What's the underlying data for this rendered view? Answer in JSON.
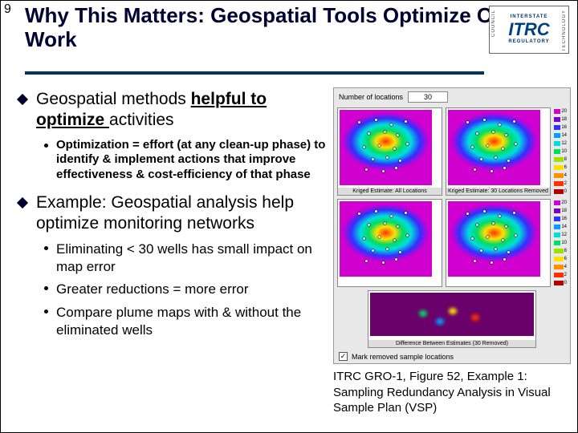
{
  "page_number": "9",
  "title": "Why This Matters: Geospatial Tools Optimize Our Work",
  "logo": {
    "main": "ITRC",
    "top": "INTERSTATE",
    "left": "COUNCIL",
    "right": "TECHNOLOGY",
    "bottom": "REGULATORY"
  },
  "bullets": {
    "b1_pre": "Geospatial methods ",
    "b1_ul": "helpful to optimize ",
    "b1_post": "activities",
    "b1_sub1": "Optimization = effort (at any clean-up phase) to identify & implement actions that improve effectiveness & cost-efficiency of that phase",
    "b2": "Example: Geospatial analysis help optimize monitoring networks",
    "b2_sub1": "Eliminating < 30 wells has small impact on map error",
    "b2_sub2": "Greater reductions = more error",
    "b2_sub3": "Compare plume maps with & without the eliminated wells"
  },
  "figure": {
    "num_label": "Number of locations",
    "num_value": "30",
    "map1_caption": "Kriged Estimate: All Locations",
    "map2_caption": "Kriged Estimate: 30 Locations Removed",
    "diff_caption": "Difference Between Estimates (30 Removed)",
    "checkbox_label": "Mark removed sample locations",
    "legend_vals": [
      "20",
      "18",
      "16",
      "14",
      "12",
      "10",
      "8",
      "6",
      "4",
      "2",
      "0"
    ],
    "legend_colors": [
      "#d000d0",
      "#8000c0",
      "#3030ff",
      "#00a0ff",
      "#00dddd",
      "#00dd60",
      "#a0e000",
      "#ffe000",
      "#ff9000",
      "#ff3000",
      "#b00000"
    ],
    "heatmap_colors": {
      "bg": "#d000d0",
      "g2": "#3030ff",
      "g3": "#00dddd",
      "g4": "#00dd60",
      "g5": "#ffe000",
      "g6": "#ff3000"
    },
    "caption_text": "ITRC GRO-1, Figure 52, Example 1: Sampling Redundancy Analysis in Visual Sample Plan (VSP)"
  }
}
